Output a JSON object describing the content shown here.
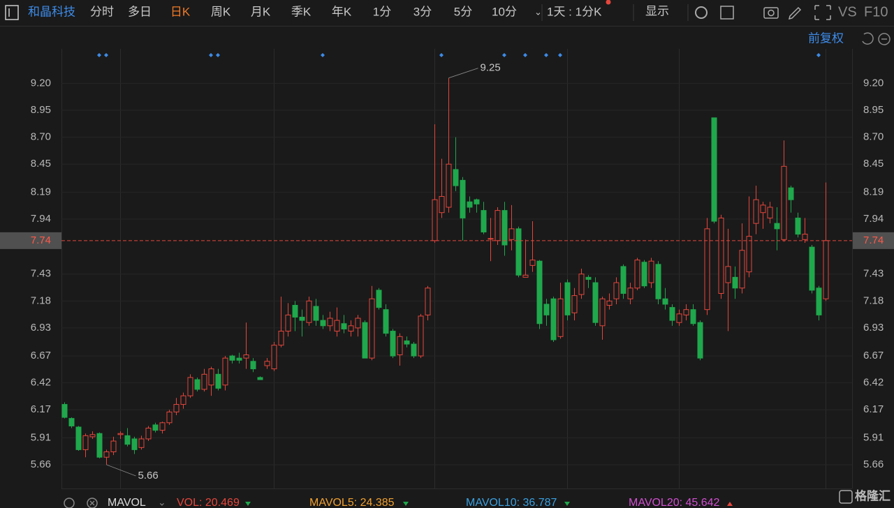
{
  "toolbar": {
    "stock": "和晶科技",
    "periods": [
      "分时",
      "多日",
      "日K",
      "周K",
      "月K",
      "季K",
      "年K",
      "1分",
      "3分",
      "5分",
      "10分"
    ],
    "range": "1天 : 1分K",
    "display": "显示",
    "vs": "VS",
    "f10": "F10"
  },
  "adjust": "前复权",
  "chart_data": {
    "type": "candlestick",
    "up_color": "#e5463c",
    "down_color": "#1fa84c",
    "open": [
      6.22,
      6.09,
      6.01,
      5.8,
      5.92,
      5.95,
      5.73,
      5.78,
      5.94,
      5.93,
      5.9,
      5.82,
      5.9,
      6.03,
      5.98,
      6.05,
      6.15,
      6.22,
      6.3,
      6.45,
      6.36,
      6.4,
      6.5,
      6.4,
      6.67,
      6.65,
      6.65,
      6.62,
      6.47,
      6.58,
      6.55,
      6.77,
      6.9,
      7.14,
      7.03,
      6.98,
      7.13,
      7.0,
      6.95,
      6.9,
      6.97,
      6.9,
      6.93,
      6.98,
      6.65,
      7.28,
      7.1,
      6.9,
      6.68,
      6.81,
      6.78,
      6.67,
      7.05,
      7.74,
      8.0,
      8.05,
      8.4,
      8.3,
      8.1,
      8.12,
      8.02,
      7.76,
      7.74,
      8.02,
      7.75,
      7.85,
      7.4,
      7.51,
      7.55,
      7.15,
      7.2,
      6.85,
      7.35,
      7.07,
      7.24,
      7.4,
      7.35,
      6.95,
      7.14,
      7.2,
      7.5,
      7.2,
      7.3,
      7.54,
      7.35,
      7.52,
      7.2,
      7.12,
      6.98,
      7.05,
      7.1,
      6.98,
      7.1,
      8.88,
      7.25,
      7.35,
      7.4,
      7.3,
      7.45,
      7.9,
      8.0,
      7.95,
      7.9,
      7.75,
      8.23,
      7.95,
      7.75,
      7.68,
      7.3,
      7.2
    ],
    "high": [
      6.24,
      6.1,
      6.02,
      5.95,
      5.97,
      5.96,
      5.8,
      5.92,
      5.97,
      6.0,
      5.92,
      5.93,
      6.02,
      6.05,
      6.06,
      6.17,
      6.28,
      6.33,
      6.5,
      6.47,
      6.55,
      6.57,
      6.55,
      6.67,
      6.68,
      6.7,
      6.98,
      6.65,
      6.48,
      6.65,
      6.8,
      7.22,
      7.16,
      7.18,
      7.1,
      7.22,
      7.2,
      7.05,
      7.08,
      7.12,
      7.05,
      7.0,
      7.05,
      7.0,
      7.32,
      7.3,
      7.15,
      6.92,
      6.88,
      6.85,
      6.8,
      7.06,
      7.32,
      8.82,
      8.5,
      9.25,
      8.7,
      8.33,
      8.15,
      8.13,
      8.1,
      7.95,
      8.05,
      8.1,
      8.07,
      7.87,
      7.75,
      7.92,
      7.56,
      7.2,
      7.22,
      7.35,
      7.38,
      7.3,
      7.48,
      7.42,
      7.4,
      7.22,
      7.25,
      7.4,
      7.52,
      7.35,
      7.58,
      7.56,
      7.58,
      7.55,
      7.3,
      7.15,
      7.1,
      7.15,
      7.15,
      7.0,
      7.95,
      8.88,
      7.98,
      7.85,
      7.5,
      7.9,
      8.15,
      8.25,
      8.1,
      8.1,
      8.05,
      8.67,
      8.25,
      8.0,
      7.95,
      7.7,
      7.32,
      8.28
    ],
    "low": [
      6.09,
      6.0,
      5.79,
      5.73,
      5.9,
      5.72,
      5.66,
      5.75,
      5.9,
      5.83,
      5.76,
      5.8,
      5.88,
      5.96,
      5.95,
      6.03,
      6.12,
      6.18,
      6.28,
      6.34,
      6.34,
      6.3,
      6.35,
      6.35,
      6.6,
      6.6,
      6.55,
      6.52,
      6.45,
      6.55,
      6.53,
      6.75,
      6.85,
      6.9,
      6.85,
      6.95,
      6.95,
      6.92,
      6.9,
      6.85,
      6.88,
      6.85,
      6.85,
      6.65,
      6.63,
      7.1,
      6.85,
      6.65,
      6.58,
      6.75,
      6.65,
      6.65,
      7.0,
      7.72,
      7.95,
      8.0,
      8.2,
      7.74,
      8.0,
      8.0,
      7.8,
      7.55,
      7.7,
      7.6,
      7.65,
      7.4,
      7.4,
      7.45,
      6.92,
      6.95,
      6.8,
      6.83,
      7.0,
      7.0,
      7.2,
      7.3,
      6.95,
      6.82,
      7.1,
      7.15,
      7.2,
      7.15,
      7.28,
      7.3,
      7.3,
      7.15,
      7.1,
      6.95,
      6.95,
      7.0,
      6.95,
      6.63,
      7.05,
      7.9,
      7.2,
      6.9,
      7.2,
      7.25,
      7.4,
      7.8,
      7.85,
      7.9,
      7.65,
      7.73,
      8.0,
      7.77,
      7.72,
      7.25,
      7.0,
      7.18
    ],
    "close": [
      6.1,
      6.02,
      5.8,
      5.93,
      5.94,
      5.73,
      5.78,
      5.88,
      5.95,
      5.85,
      5.8,
      5.9,
      6.0,
      5.98,
      6.05,
      6.15,
      6.22,
      6.3,
      6.47,
      6.36,
      6.5,
      6.55,
      6.37,
      6.65,
      6.63,
      6.63,
      6.68,
      6.55,
      6.45,
      6.62,
      6.77,
      6.9,
      7.05,
      7.03,
      7.0,
      7.18,
      7.0,
      6.95,
      7.02,
      7.0,
      6.92,
      6.95,
      7.02,
      6.65,
      7.2,
      7.12,
      6.88,
      6.67,
      6.85,
      6.78,
      6.67,
      7.04,
      7.3,
      8.12,
      8.15,
      8.45,
      8.25,
      7.95,
      8.05,
      8.08,
      7.82,
      7.76,
      8.02,
      7.7,
      7.85,
      7.42,
      7.42,
      7.56,
      6.97,
      7.05,
      6.82,
      7.2,
      7.05,
      7.23,
      7.43,
      7.38,
      6.98,
      7.2,
      7.18,
      7.35,
      7.25,
      7.3,
      7.56,
      7.32,
      7.55,
      7.2,
      7.15,
      7.0,
      7.06,
      7.1,
      6.97,
      6.65,
      7.85,
      7.92,
      7.95,
      7.5,
      7.3,
      7.65,
      7.78,
      8.12,
      8.07,
      8.05,
      7.85,
      8.43,
      8.12,
      7.8,
      7.8,
      7.28,
      7.05,
      7.74
    ],
    "ylim": [
      5.44,
      9.52
    ],
    "yticks": [
      {
        "value": 9.2,
        "label": "9.20"
      },
      8.95,
      {
        "value": 8.7,
        "label": "8.70"
      },
      8.45,
      8.19,
      7.94,
      7.43,
      7.18,
      6.93,
      6.67,
      6.42,
      6.17,
      5.91,
      5.66
    ],
    "last_price": {
      "value": 7.74,
      "label": "7.74"
    },
    "annotations": [
      {
        "value": 9.25,
        "label": "9.25"
      },
      {
        "value": 5.66,
        "label": "5.66"
      }
    ],
    "grid": true
  },
  "indicator": {
    "name": "MAVOL",
    "items": [
      "VOL: 20.469",
      "MAVOL5: 24.385",
      "MAVOL10: 36.787",
      "MAVOL20: 45.642"
    ]
  },
  "logo": "格隆汇"
}
